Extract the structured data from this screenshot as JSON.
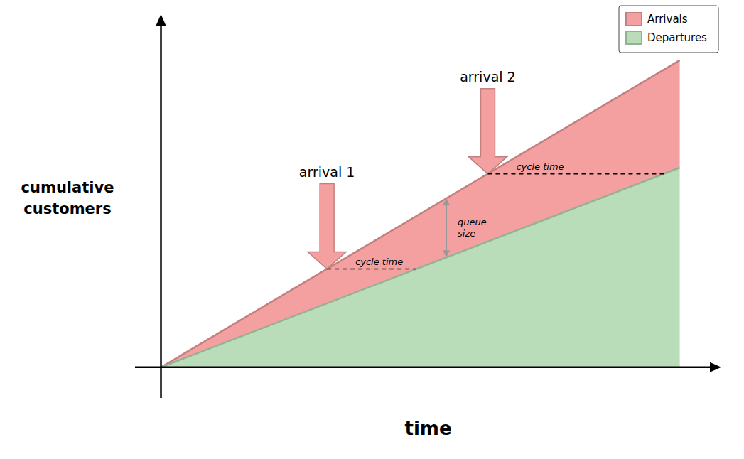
{
  "chart_data": {
    "type": "area",
    "title": "",
    "xlabel": "time",
    "ylabel": "cumulative\ncustomers",
    "x": [
      0,
      10
    ],
    "series": [
      {
        "name": "Arrivals",
        "color": "#f4a0a0",
        "values": [
          0,
          10
        ]
      },
      {
        "name": "Departures",
        "color": "#b8ddb8",
        "values": [
          0,
          6.5
        ]
      }
    ],
    "xlim": [
      -0.5,
      10.8
    ],
    "ylim": [
      -1.0,
      11.5
    ],
    "tick_labels": false,
    "grid": false,
    "legend": "upper right",
    "annotations": [
      {
        "text": "arrival 1",
        "x": 3.2,
        "type": "arrow"
      },
      {
        "text": "arrival 2",
        "x": 6.3,
        "type": "arrow"
      },
      {
        "text": "cycle time",
        "x": 3.2,
        "type": "cycle_time"
      },
      {
        "text": "cycle time",
        "x": 6.3,
        "type": "cycle_time"
      },
      {
        "text": "queue\nsize",
        "x": 5.5,
        "type": "queue"
      }
    ]
  }
}
